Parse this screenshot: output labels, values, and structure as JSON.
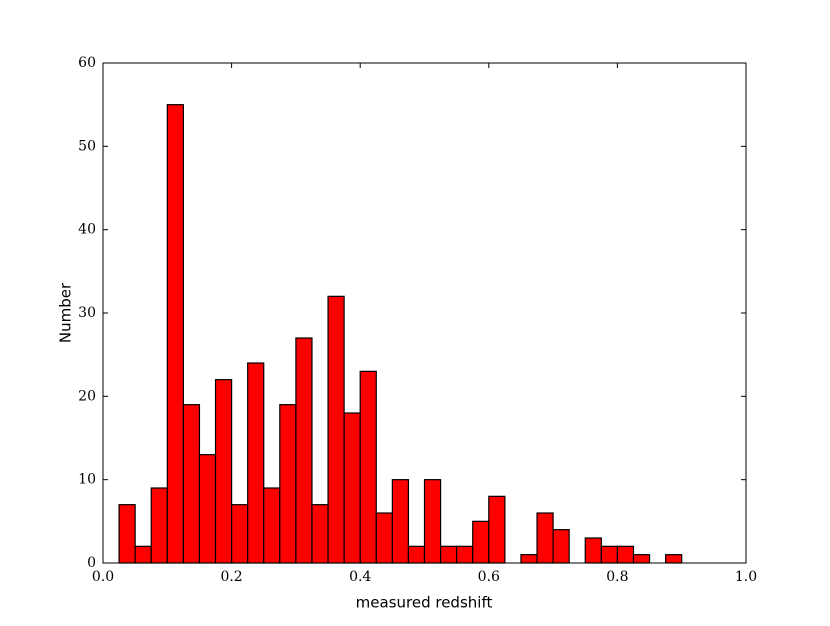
{
  "chart_data": {
    "type": "histogram",
    "xlabel": "measured redshift",
    "ylabel": "Number",
    "bins": [
      0.025,
      0.05,
      0.075,
      0.1,
      0.125,
      0.15,
      0.175,
      0.2,
      0.225,
      0.25,
      0.275,
      0.3,
      0.325,
      0.35,
      0.375,
      0.4,
      0.425,
      0.45,
      0.475,
      0.5,
      0.525,
      0.55,
      0.575,
      0.6,
      0.625,
      0.65,
      0.675,
      0.7,
      0.725,
      0.75,
      0.775,
      0.8,
      0.825,
      0.85,
      0.875,
      0.9
    ],
    "values": [
      7,
      2,
      9,
      55,
      19,
      13,
      22,
      7,
      24,
      9,
      19,
      27,
      7,
      32,
      18,
      23,
      6,
      10,
      2,
      10,
      2,
      2,
      5,
      8,
      0,
      1,
      6,
      4,
      0,
      3,
      2,
      2,
      1,
      0,
      1
    ],
    "color": "#ff0000",
    "xlim": [
      0,
      1
    ],
    "xticks": [
      {
        "value": 0,
        "label": "0.0"
      },
      0.2,
      0.4,
      0.6,
      0.8,
      {
        "value": 1,
        "label": "1.0"
      }
    ],
    "ylim": [
      0,
      60
    ],
    "yticks": [
      0,
      10,
      20,
      30,
      40,
      50,
      60
    ]
  }
}
